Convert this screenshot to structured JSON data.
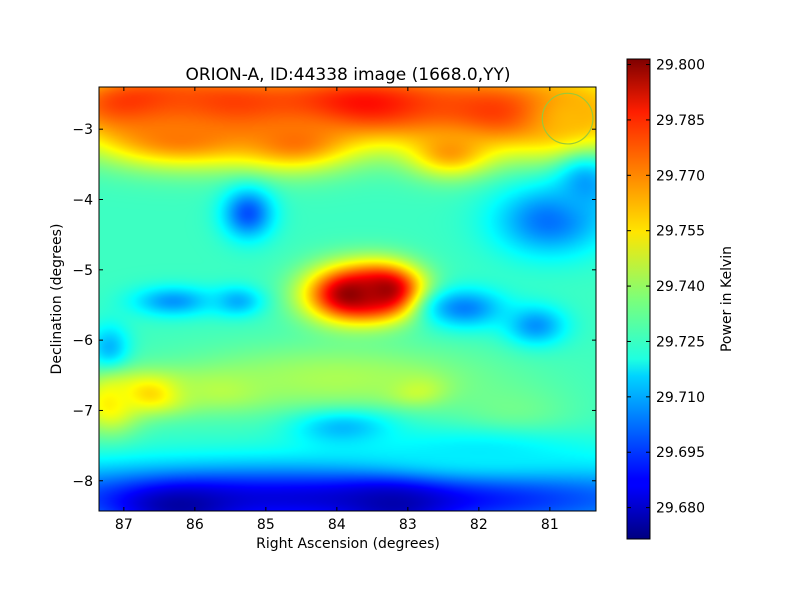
{
  "chart_data": {
    "type": "heatmap",
    "title": "ORION-A, ID:44338 image (1668.0,YY)",
    "xlabel": "Right Ascension (degrees)",
    "ylabel": "Declination (degrees)",
    "colorbar_label": "Power in Kelvin",
    "colormap": "jet",
    "xlim": [
      87.35,
      80.35
    ],
    "ylim": [
      -8.43,
      -2.4
    ],
    "x_ticks": [
      87,
      86,
      85,
      84,
      83,
      82,
      81
    ],
    "x_tick_labels": [
      "87",
      "86",
      "85",
      "84",
      "83",
      "82",
      "81"
    ],
    "y_ticks": [
      -3,
      -4,
      -5,
      -6,
      -7,
      -8
    ],
    "y_tick_labels": [
      "−3",
      "−4",
      "−5",
      "−6",
      "−7",
      "−8"
    ],
    "color_range": [
      29.6715,
      29.8015
    ],
    "colorbar_ticks": [
      29.68,
      29.695,
      29.71,
      29.725,
      29.74,
      29.755,
      29.77,
      29.785,
      29.8
    ],
    "colorbar_tick_labels": [
      "29.680",
      "29.695",
      "29.710",
      "29.725",
      "29.740",
      "29.755",
      "29.770",
      "29.785",
      "29.800"
    ],
    "background_level": 29.728,
    "features": [
      {
        "ra": 86.8,
        "dec": -2.65,
        "dra": 0.9,
        "ddec": 0.35,
        "value": 29.782
      },
      {
        "ra": 85.6,
        "dec": -2.7,
        "dra": 1.0,
        "ddec": 0.35,
        "value": 29.778
      },
      {
        "ra": 83.6,
        "dec": -2.65,
        "dra": 1.2,
        "ddec": 0.35,
        "value": 29.786
      },
      {
        "ra": 81.6,
        "dec": -2.75,
        "dra": 1.2,
        "ddec": 0.4,
        "value": 29.78
      },
      {
        "ra": 80.7,
        "dec": -2.85,
        "dra": 0.5,
        "ddec": 0.4,
        "value": 29.762
      },
      {
        "ra": 86.2,
        "dec": -3.1,
        "dra": 0.8,
        "ddec": 0.3,
        "value": 29.77
      },
      {
        "ra": 84.6,
        "dec": -3.15,
        "dra": 0.6,
        "ddec": 0.3,
        "value": 29.771
      },
      {
        "ra": 82.4,
        "dec": -3.3,
        "dra": 0.4,
        "ddec": 0.25,
        "value": 29.766
      },
      {
        "ra": 83.8,
        "dec": -5.35,
        "dra": 0.45,
        "ddec": 0.28,
        "value": 29.8
      },
      {
        "ra": 83.3,
        "dec": -5.3,
        "dra": 0.35,
        "ddec": 0.25,
        "value": 29.798
      },
      {
        "ra": 85.25,
        "dec": -4.2,
        "dra": 0.25,
        "ddec": 0.25,
        "value": 29.698
      },
      {
        "ra": 81.0,
        "dec": -4.3,
        "dra": 0.55,
        "ddec": 0.35,
        "value": 29.702
      },
      {
        "ra": 80.5,
        "dec": -3.8,
        "dra": 0.3,
        "ddec": 0.3,
        "value": 29.708
      },
      {
        "ra": 86.3,
        "dec": -5.45,
        "dra": 0.4,
        "ddec": 0.15,
        "value": 29.707
      },
      {
        "ra": 85.4,
        "dec": -5.45,
        "dra": 0.25,
        "ddec": 0.15,
        "value": 29.71
      },
      {
        "ra": 82.2,
        "dec": -5.55,
        "dra": 0.4,
        "ddec": 0.2,
        "value": 29.704
      },
      {
        "ra": 81.2,
        "dec": -5.8,
        "dra": 0.3,
        "ddec": 0.2,
        "value": 29.706
      },
      {
        "ra": 87.2,
        "dec": -6.15,
        "dra": 0.2,
        "ddec": 0.25,
        "value": 29.708
      },
      {
        "ra": 86.6,
        "dec": -6.75,
        "dra": 0.4,
        "ddec": 0.2,
        "value": 29.764
      },
      {
        "ra": 87.2,
        "dec": -6.9,
        "dra": 0.3,
        "ddec": 0.3,
        "value": 29.755
      },
      {
        "ra": 85.6,
        "dec": -6.7,
        "dra": 0.5,
        "ddec": 0.2,
        "value": 29.745
      },
      {
        "ra": 82.9,
        "dec": -6.7,
        "dra": 0.3,
        "ddec": 0.15,
        "value": 29.755
      },
      {
        "ra": 83.9,
        "dec": -7.2,
        "dra": 0.5,
        "ddec": 0.2,
        "value": 29.706
      },
      {
        "ra": 81.5,
        "dec": -7.1,
        "dra": 0.6,
        "ddec": 0.3,
        "value": 29.735
      },
      {
        "ra": 84.0,
        "dec": -6.55,
        "dra": 1.5,
        "ddec": 0.35,
        "value": 29.742
      },
      {
        "ra": 84.0,
        "dec": -8.25,
        "dra": 3.8,
        "ddec": 0.35,
        "value": 29.683
      },
      {
        "ra": 86.2,
        "dec": -8.35,
        "dra": 0.6,
        "ddec": 0.2,
        "value": 29.676
      },
      {
        "ra": 83.2,
        "dec": -8.3,
        "dra": 0.5,
        "ddec": 0.2,
        "value": 29.677
      },
      {
        "ra": 82.0,
        "dec": -7.6,
        "dra": 1.2,
        "ddec": 0.25,
        "value": 29.718
      }
    ],
    "beam_marker": {
      "ra": 80.75,
      "dec": -2.85,
      "radius_deg": 0.36,
      "color": "#9ac83a"
    }
  }
}
